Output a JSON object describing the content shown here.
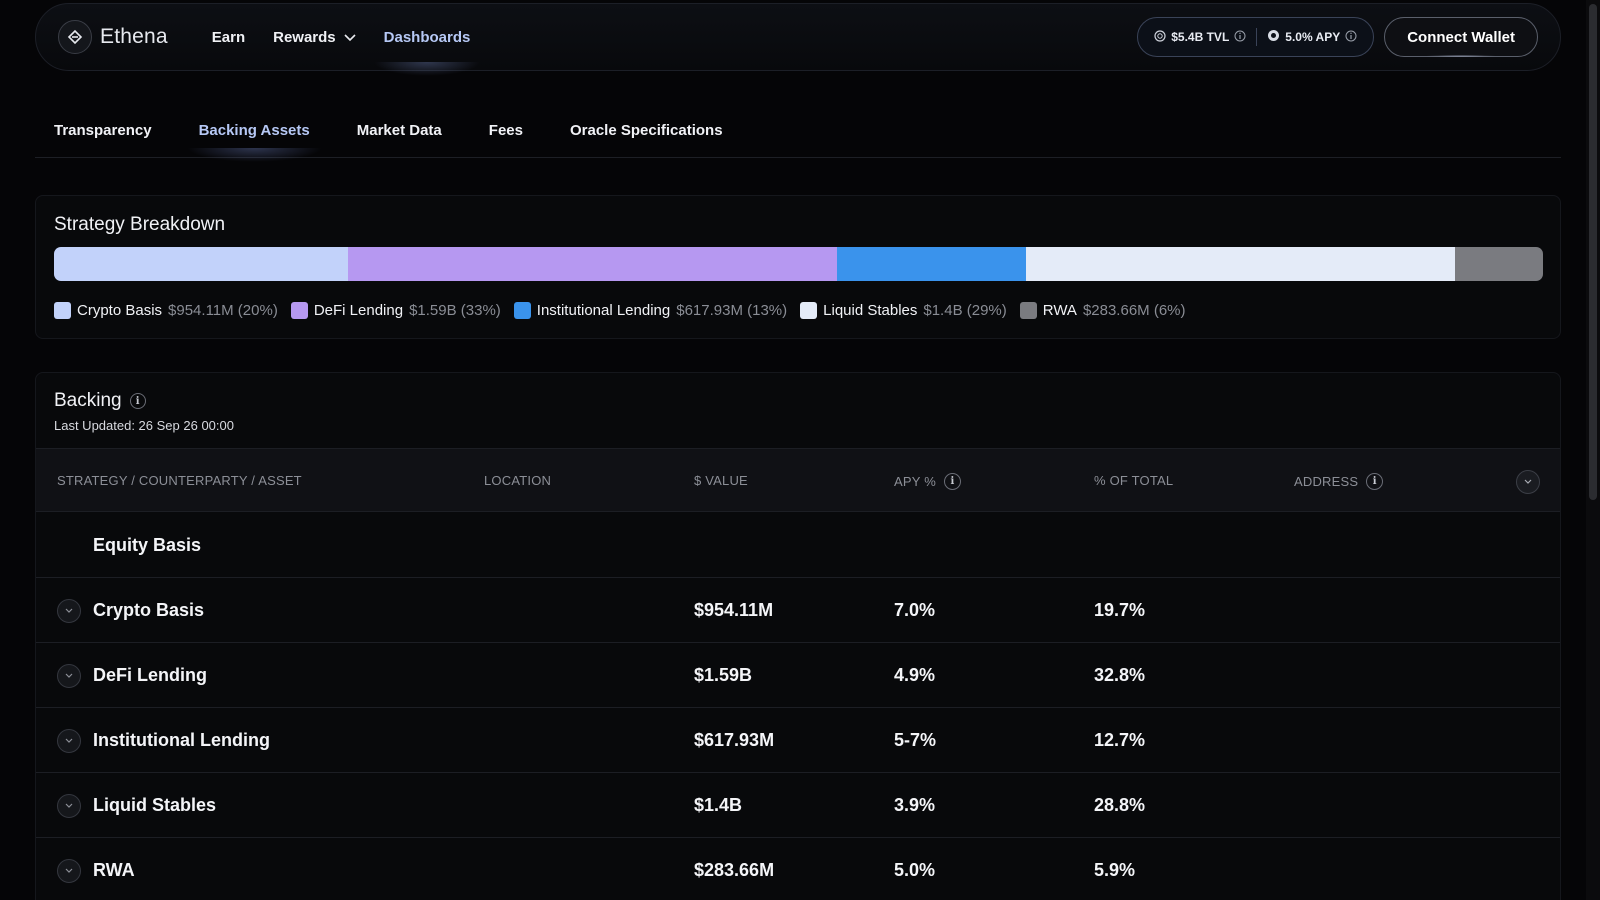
{
  "nav": {
    "brand": "Ethena",
    "links": [
      {
        "label": "Earn"
      },
      {
        "label": "Rewards"
      },
      {
        "label": "Dashboards"
      }
    ],
    "tvl": "$5.4B TVL",
    "apy": "5.0% APY",
    "connect_label": "Connect Wallet"
  },
  "subtabs": [
    "Transparency",
    "Backing Assets",
    "Market Data",
    "Fees",
    "Oracle Specifications"
  ],
  "strategy": {
    "title": "Strategy Breakdown",
    "colors": [
      "#c2d2fa",
      "#b698f1",
      "#3a93ec",
      "#e4ebf8",
      "#7a7b80"
    ],
    "segments": [
      {
        "name": "Crypto Basis",
        "value_label": "$954.11M (20%)",
        "percent": 19.7
      },
      {
        "name": "DeFi Lending",
        "value_label": "$1.59B (33%)",
        "percent": 32.8
      },
      {
        "name": "Institutional Lending",
        "value_label": "$617.93M (13%)",
        "percent": 12.7
      },
      {
        "name": "Liquid Stables",
        "value_label": "$1.4B (29%)",
        "percent": 28.8
      },
      {
        "name": "RWA",
        "value_label": "$283.66M (6%)",
        "percent": 5.9
      }
    ]
  },
  "backing": {
    "title": "Backing",
    "last_updated": "Last Updated: 26 Sep 26 00:00",
    "columns": {
      "strategy": "STRATEGY / COUNTERPARTY / ASSET",
      "location": "LOCATION",
      "value": "$ VALUE",
      "apy": "APY %",
      "pct": "% OF TOTAL",
      "address": "ADDRESS"
    },
    "group_label": "Equity Basis",
    "rows": [
      {
        "name": "Crypto Basis",
        "value": "$954.11M",
        "apy": "7.0%",
        "pct": "19.7%"
      },
      {
        "name": "DeFi Lending",
        "value": "$1.59B",
        "apy": "4.9%",
        "pct": "32.8%"
      },
      {
        "name": "Institutional Lending",
        "value": "$617.93M",
        "apy": "5-7%",
        "pct": "12.7%"
      },
      {
        "name": "Liquid Stables",
        "value": "$1.4B",
        "apy": "3.9%",
        "pct": "28.8%"
      },
      {
        "name": "RWA",
        "value": "$283.66M",
        "apy": "5.0%",
        "pct": "5.9%"
      }
    ]
  }
}
